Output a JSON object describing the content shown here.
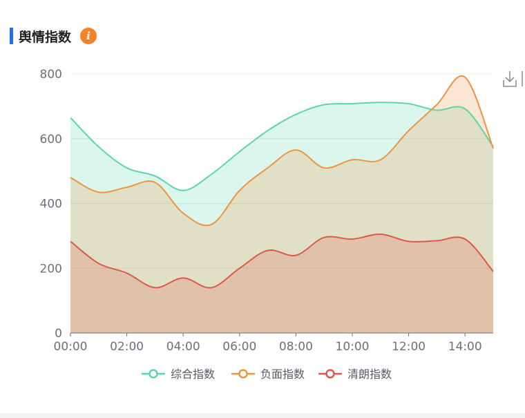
{
  "panel": {
    "title": "舆情指数"
  },
  "icons": {
    "info": "info-icon",
    "download": "download-icon"
  },
  "colors": {
    "composite": "#5cd6a8",
    "negative": "#f0923e",
    "clarity": "#e0574a",
    "title_accent": "#1e6ff0",
    "info": "#f5822a"
  },
  "chart_data": {
    "type": "area",
    "title": "",
    "xlabel": "",
    "ylabel": "",
    "ylim": [
      0,
      800
    ],
    "yticks": [
      "0",
      "200",
      "400",
      "600",
      "800"
    ],
    "xticks": [
      "00:00",
      "02:00",
      "04:00",
      "06:00",
      "08:00",
      "10:00",
      "12:00",
      "14:00"
    ],
    "legend_position": "bottom",
    "grid": true,
    "x": [
      0,
      1,
      2,
      3,
      4,
      5,
      6,
      7,
      8,
      9,
      10,
      11,
      12,
      13,
      14,
      15
    ],
    "series": [
      {
        "name": "综合指数",
        "values": [
          665,
          575,
          510,
          485,
          440,
          490,
          560,
          625,
          675,
          705,
          708,
          712,
          708,
          688,
          692,
          575
        ]
      },
      {
        "name": "负面指数",
        "values": [
          480,
          435,
          450,
          465,
          370,
          335,
          440,
          510,
          565,
          510,
          535,
          535,
          625,
          705,
          790,
          570
        ]
      },
      {
        "name": "清朗指数",
        "values": [
          283,
          215,
          185,
          140,
          170,
          140,
          200,
          255,
          240,
          295,
          290,
          305,
          283,
          285,
          290,
          190
        ]
      }
    ]
  }
}
